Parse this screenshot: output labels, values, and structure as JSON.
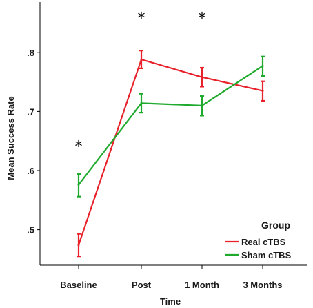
{
  "chart_data": {
    "type": "line",
    "xlabel": "Time",
    "ylabel": "Mean Success Rate",
    "categories": [
      "Baseline",
      "Post",
      "1 Month",
      "3 Months"
    ],
    "ylim": [
      0.44,
      0.885
    ],
    "yticks": [
      {
        "value": 0.5,
        "label": ".5"
      },
      {
        "value": 0.6,
        "label": ".6"
      },
      {
        "value": 0.7,
        "label": ".7"
      },
      {
        "value": 0.8,
        "label": ".8"
      }
    ],
    "series": [
      {
        "name": "Real cTBS",
        "color": "#e8212b",
        "values": [
          0.474,
          0.788,
          0.758,
          0.735
        ],
        "err_low": [
          0.455,
          0.773,
          0.742,
          0.718
        ],
        "err_high": [
          0.493,
          0.803,
          0.774,
          0.751
        ]
      },
      {
        "name": "Sham cTBS",
        "color": "#1faa2e",
        "values": [
          0.576,
          0.714,
          0.71,
          0.777
        ],
        "err_low": [
          0.556,
          0.698,
          0.693,
          0.76
        ],
        "err_high": [
          0.594,
          0.73,
          0.726,
          0.793
        ]
      }
    ],
    "significance": [
      {
        "category": "Baseline",
        "value": 0.645,
        "label": "*"
      },
      {
        "category": "Post",
        "value": 0.862,
        "label": "*"
      },
      {
        "category": "1 Month",
        "value": 0.862,
        "label": "*"
      }
    ],
    "legend": {
      "title": "Group",
      "placement": "bottom-right"
    },
    "grid": false
  }
}
